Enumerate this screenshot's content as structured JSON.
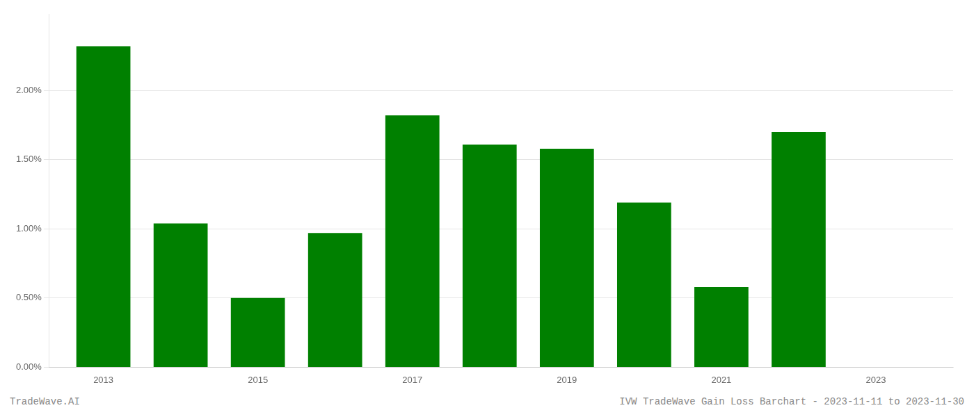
{
  "chart_data": {
    "type": "bar",
    "title": "IVW TradeWave Gain Loss Barchart - 2023-11-11 to 2023-11-30",
    "annotations": [
      {
        "text": "TradeWave.AI"
      }
    ],
    "x": [
      2013,
      2014,
      2015,
      2016,
      2017,
      2018,
      2019,
      2020,
      2021,
      2022
    ],
    "values": [
      0.0232,
      0.0104,
      0.005,
      0.0097,
      0.0182,
      0.0161,
      0.0158,
      0.0119,
      0.0058,
      0.017
    ],
    "color": "#008000",
    "xlim": [
      2012.3,
      2024.0
    ],
    "xticks": [
      2013,
      2015,
      2017,
      2019,
      2021,
      2023
    ],
    "ylim": [
      0,
      0.0255
    ],
    "yticks": [
      {
        "value": 0.0,
        "label": "0.00%"
      },
      {
        "value": 0.005,
        "label": "0.50%"
      },
      {
        "value": 0.01,
        "label": "1.00%"
      },
      {
        "value": 0.015,
        "label": "1.50%"
      },
      {
        "value": 0.02,
        "label": "2.00%"
      }
    ],
    "grid": "y"
  }
}
